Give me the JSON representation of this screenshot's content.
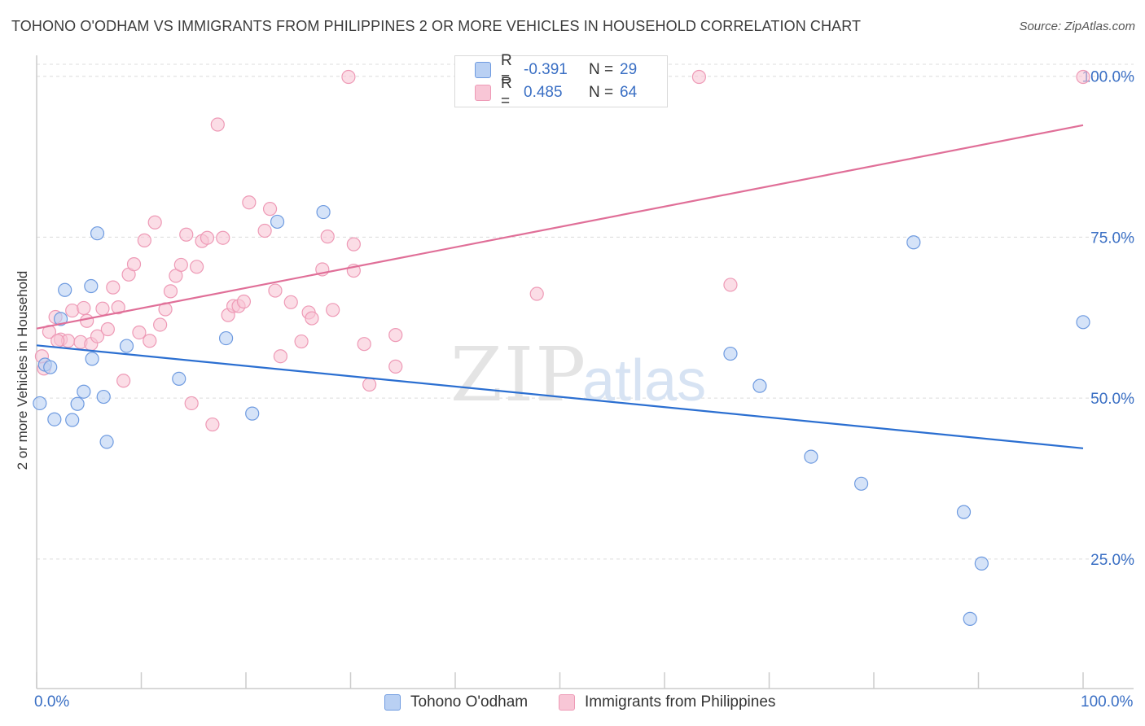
{
  "title": "TOHONO O'ODHAM VS IMMIGRANTS FROM PHILIPPINES 2 OR MORE VEHICLES IN HOUSEHOLD CORRELATION CHART",
  "source": "Source: ZipAtlas.com",
  "watermark": {
    "zip": "ZIP",
    "atlas": "atlas"
  },
  "colors": {
    "blue_fill": "#b9d0f3",
    "blue_stroke": "#6f9be0",
    "blue_line": "#2b6fd1",
    "pink_fill": "#f8c6d6",
    "pink_stroke": "#ee9ab6",
    "pink_line": "#e06f98",
    "axis_text": "#3a6fc4",
    "grid": "#dcdcdc"
  },
  "legend": {
    "r_label": "R =",
    "n_label": "N =",
    "series": [
      {
        "r": "-0.391",
        "n": "29"
      },
      {
        "r": "0.485",
        "n": "64"
      }
    ]
  },
  "chart_data": {
    "type": "scatter",
    "title": "TOHONO O'ODHAM VS IMMIGRANTS FROM PHILIPPINES 2 OR MORE VEHICLES IN HOUSEHOLD CORRELATION CHART",
    "xlabel": "",
    "ylabel": "2 or more Vehicles in Household",
    "xlim": [
      0,
      100
    ],
    "ylim": [
      5,
      103
    ],
    "x_tick_labels": [
      "0.0%",
      "100.0%"
    ],
    "y_tick_labels": [
      "25.0%",
      "50.0%",
      "75.0%",
      "100.0%"
    ],
    "y_ticks": [
      25,
      50,
      75,
      100
    ],
    "grid": "horizontal dashed",
    "legend_position": "top-center and bottom",
    "series": [
      {
        "name": "Tohono O'odham",
        "color": "blue",
        "r": -0.391,
        "n": 29,
        "trend": {
          "x": [
            0,
            100
          ],
          "y": [
            58.2,
            42.2
          ]
        },
        "points": [
          [
            0.3,
            49.2
          ],
          [
            0.8,
            55.2
          ],
          [
            1.3,
            54.8
          ],
          [
            1.7,
            46.7
          ],
          [
            2.3,
            62.3
          ],
          [
            2.7,
            66.8
          ],
          [
            3.4,
            46.6
          ],
          [
            3.9,
            49.1
          ],
          [
            4.5,
            51.0
          ],
          [
            5.2,
            67.4
          ],
          [
            5.3,
            56.1
          ],
          [
            5.8,
            75.6
          ],
          [
            6.4,
            50.2
          ],
          [
            6.7,
            43.2
          ],
          [
            8.6,
            58.1
          ],
          [
            13.6,
            53.0
          ],
          [
            18.1,
            59.3
          ],
          [
            20.6,
            47.6
          ],
          [
            23.0,
            77.4
          ],
          [
            27.4,
            78.9
          ],
          [
            66.3,
            56.9
          ],
          [
            69.1,
            51.9
          ],
          [
            74.0,
            40.9
          ],
          [
            78.8,
            36.7
          ],
          [
            83.8,
            74.2
          ],
          [
            88.6,
            32.3
          ],
          [
            90.3,
            24.3
          ],
          [
            89.2,
            15.7
          ],
          [
            100.0,
            61.8
          ]
        ]
      },
      {
        "name": "Immigrants from Philippines",
        "color": "pink",
        "r": 0.485,
        "n": 64,
        "trend": {
          "x": [
            0,
            100
          ],
          "y": [
            60.8,
            92.4
          ]
        },
        "points": [
          [
            0.7,
            54.6
          ],
          [
            1.2,
            60.3
          ],
          [
            1.8,
            62.6
          ],
          [
            2.3,
            59.1
          ],
          [
            3.0,
            58.9
          ],
          [
            3.4,
            63.6
          ],
          [
            4.2,
            58.7
          ],
          [
            4.5,
            64.0
          ],
          [
            4.8,
            62.0
          ],
          [
            5.2,
            58.4
          ],
          [
            5.8,
            59.6
          ],
          [
            6.3,
            63.9
          ],
          [
            6.8,
            60.7
          ],
          [
            7.3,
            67.2
          ],
          [
            7.8,
            64.1
          ],
          [
            8.3,
            52.7
          ],
          [
            8.8,
            69.2
          ],
          [
            9.3,
            70.8
          ],
          [
            9.8,
            60.2
          ],
          [
            10.3,
            74.5
          ],
          [
            10.8,
            58.9
          ],
          [
            11.3,
            77.3
          ],
          [
            11.8,
            61.4
          ],
          [
            12.3,
            63.8
          ],
          [
            12.8,
            66.6
          ],
          [
            13.3,
            69.0
          ],
          [
            13.8,
            70.7
          ],
          [
            14.3,
            75.4
          ],
          [
            14.8,
            49.2
          ],
          [
            15.3,
            70.4
          ],
          [
            15.8,
            74.4
          ],
          [
            16.3,
            74.9
          ],
          [
            16.8,
            45.9
          ],
          [
            17.3,
            92.5
          ],
          [
            17.8,
            74.9
          ],
          [
            18.3,
            62.9
          ],
          [
            18.8,
            64.3
          ],
          [
            19.3,
            64.3
          ],
          [
            19.8,
            65.0
          ],
          [
            20.3,
            80.4
          ],
          [
            21.8,
            76.0
          ],
          [
            22.3,
            79.4
          ],
          [
            22.8,
            66.7
          ],
          [
            23.3,
            56.5
          ],
          [
            24.3,
            64.9
          ],
          [
            25.3,
            58.8
          ],
          [
            26.0,
            63.3
          ],
          [
            26.3,
            62.4
          ],
          [
            27.3,
            70.0
          ],
          [
            27.8,
            75.1
          ],
          [
            28.3,
            63.7
          ],
          [
            29.8,
            99.9
          ],
          [
            30.3,
            73.9
          ],
          [
            30.3,
            69.8
          ],
          [
            31.3,
            58.4
          ],
          [
            31.8,
            52.1
          ],
          [
            34.3,
            54.9
          ],
          [
            34.3,
            59.8
          ],
          [
            47.8,
            66.2
          ],
          [
            63.3,
            99.9
          ],
          [
            66.3,
            67.6
          ],
          [
            100.0,
            99.9
          ],
          [
            0.5,
            56.5
          ],
          [
            2.0,
            58.9
          ]
        ]
      }
    ]
  }
}
